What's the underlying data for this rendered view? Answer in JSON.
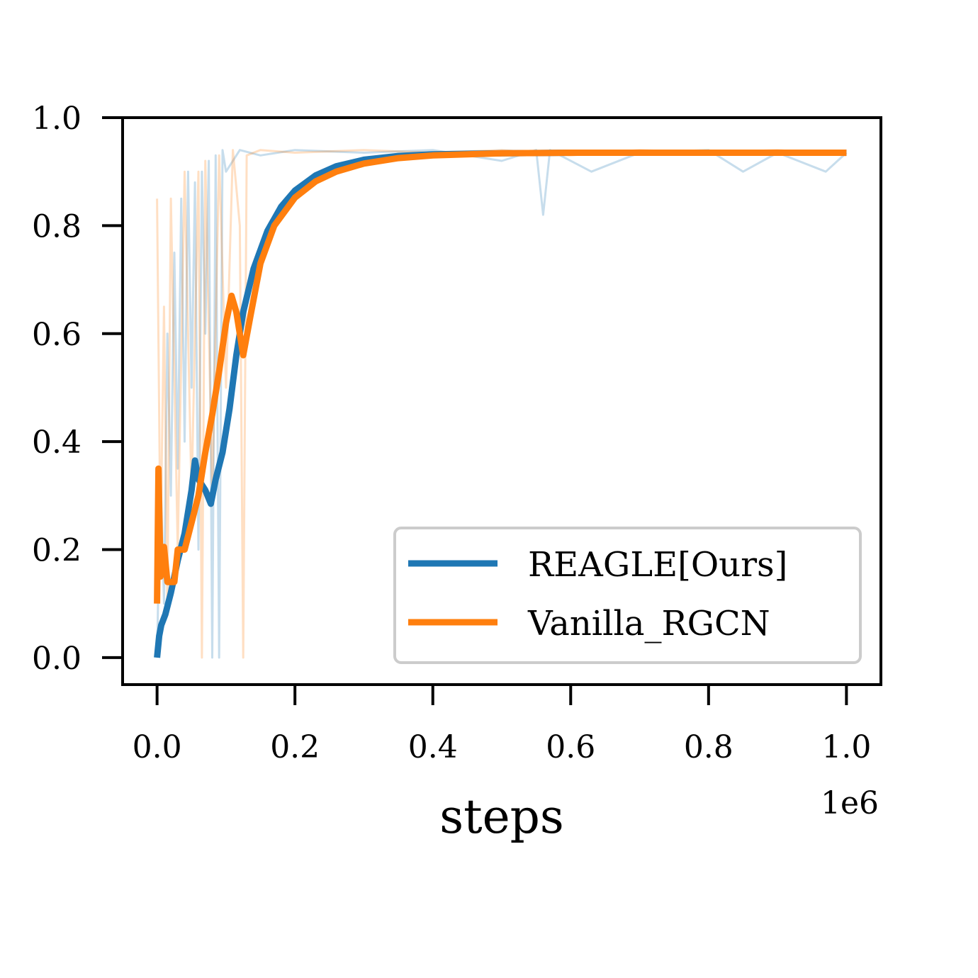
{
  "chart_data": {
    "type": "line",
    "title": "",
    "xlabel": "steps",
    "ylabel": "",
    "x_offset_label": "1e6",
    "xlim": [
      -0.05,
      1.05
    ],
    "ylim": [
      -0.05,
      1.0
    ],
    "xticks": [
      "0.0",
      "0.2",
      "0.4",
      "0.6",
      "0.8",
      "1.0"
    ],
    "yticks": [
      "0.0",
      "0.2",
      "0.4",
      "0.6",
      "0.8",
      "1.0"
    ],
    "grid": false,
    "legend_position": "lower-right",
    "series": [
      {
        "name": "REAGLE[Ours]",
        "color": "#1f77b4",
        "smoothed": [
          [
            0.0,
            0.0
          ],
          [
            0.003,
            0.04
          ],
          [
            0.006,
            0.06
          ],
          [
            0.012,
            0.08
          ],
          [
            0.02,
            0.12
          ],
          [
            0.03,
            0.18
          ],
          [
            0.04,
            0.23
          ],
          [
            0.05,
            0.31
          ],
          [
            0.055,
            0.365
          ],
          [
            0.06,
            0.33
          ],
          [
            0.07,
            0.31
          ],
          [
            0.078,
            0.285
          ],
          [
            0.085,
            0.33
          ],
          [
            0.095,
            0.38
          ],
          [
            0.105,
            0.46
          ],
          [
            0.115,
            0.56
          ],
          [
            0.125,
            0.64
          ],
          [
            0.14,
            0.72
          ],
          [
            0.16,
            0.79
          ],
          [
            0.18,
            0.835
          ],
          [
            0.2,
            0.865
          ],
          [
            0.23,
            0.893
          ],
          [
            0.26,
            0.91
          ],
          [
            0.3,
            0.922
          ],
          [
            0.35,
            0.929
          ],
          [
            0.4,
            0.932
          ],
          [
            0.5,
            0.934
          ],
          [
            0.6,
            0.935
          ],
          [
            0.7,
            0.935
          ],
          [
            0.8,
            0.935
          ],
          [
            0.9,
            0.935
          ],
          [
            1.0,
            0.935
          ]
        ],
        "raw": [
          [
            0.0,
            0.0
          ],
          [
            0.005,
            0.35
          ],
          [
            0.01,
            0.1
          ],
          [
            0.015,
            0.6
          ],
          [
            0.02,
            0.3
          ],
          [
            0.025,
            0.75
          ],
          [
            0.03,
            0.35
          ],
          [
            0.035,
            0.85
          ],
          [
            0.04,
            0.4
          ],
          [
            0.045,
            0.9
          ],
          [
            0.05,
            0.5
          ],
          [
            0.055,
            0.88
          ],
          [
            0.06,
            0.2
          ],
          [
            0.065,
            0.9
          ],
          [
            0.07,
            0.6
          ],
          [
            0.075,
            0.92
          ],
          [
            0.08,
            0.0
          ],
          [
            0.085,
            0.93
          ],
          [
            0.09,
            0.0
          ],
          [
            0.095,
            0.94
          ],
          [
            0.1,
            0.9
          ],
          [
            0.12,
            0.94
          ],
          [
            0.15,
            0.93
          ],
          [
            0.2,
            0.94
          ],
          [
            0.3,
            0.935
          ],
          [
            0.4,
            0.94
          ],
          [
            0.5,
            0.92
          ],
          [
            0.55,
            0.94
          ],
          [
            0.56,
            0.82
          ],
          [
            0.57,
            0.94
          ],
          [
            0.63,
            0.9
          ],
          [
            0.7,
            0.935
          ],
          [
            0.8,
            0.94
          ],
          [
            0.85,
            0.9
          ],
          [
            0.9,
            0.935
          ],
          [
            0.97,
            0.9
          ],
          [
            1.0,
            0.935
          ]
        ]
      },
      {
        "name": "Vanilla_RGCN",
        "color": "#ff7f0e",
        "smoothed": [
          [
            0.0,
            0.1
          ],
          [
            0.002,
            0.35
          ],
          [
            0.005,
            0.15
          ],
          [
            0.01,
            0.205
          ],
          [
            0.015,
            0.14
          ],
          [
            0.02,
            0.14
          ],
          [
            0.025,
            0.14
          ],
          [
            0.03,
            0.2
          ],
          [
            0.04,
            0.2
          ],
          [
            0.05,
            0.25
          ],
          [
            0.06,
            0.3
          ],
          [
            0.07,
            0.38
          ],
          [
            0.08,
            0.45
          ],
          [
            0.09,
            0.53
          ],
          [
            0.1,
            0.62
          ],
          [
            0.108,
            0.67
          ],
          [
            0.115,
            0.64
          ],
          [
            0.125,
            0.56
          ],
          [
            0.135,
            0.63
          ],
          [
            0.15,
            0.73
          ],
          [
            0.17,
            0.8
          ],
          [
            0.2,
            0.852
          ],
          [
            0.23,
            0.882
          ],
          [
            0.26,
            0.9
          ],
          [
            0.3,
            0.915
          ],
          [
            0.35,
            0.925
          ],
          [
            0.4,
            0.93
          ],
          [
            0.5,
            0.934
          ],
          [
            0.6,
            0.935
          ],
          [
            0.7,
            0.935
          ],
          [
            0.8,
            0.935
          ],
          [
            0.9,
            0.935
          ],
          [
            1.0,
            0.935
          ]
        ],
        "raw": [
          [
            0.0,
            0.85
          ],
          [
            0.005,
            0.2
          ],
          [
            0.01,
            0.65
          ],
          [
            0.015,
            0.1
          ],
          [
            0.02,
            0.85
          ],
          [
            0.03,
            0.2
          ],
          [
            0.04,
            0.9
          ],
          [
            0.05,
            0.3
          ],
          [
            0.06,
            0.9
          ],
          [
            0.065,
            0.0
          ],
          [
            0.07,
            0.92
          ],
          [
            0.08,
            0.3
          ],
          [
            0.09,
            0.93
          ],
          [
            0.1,
            0.5
          ],
          [
            0.11,
            0.94
          ],
          [
            0.12,
            0.8
          ],
          [
            0.125,
            0.0
          ],
          [
            0.13,
            0.93
          ],
          [
            0.15,
            0.94
          ],
          [
            0.2,
            0.935
          ],
          [
            0.3,
            0.94
          ],
          [
            0.4,
            0.935
          ],
          [
            0.5,
            0.94
          ],
          [
            0.6,
            0.93
          ],
          [
            0.7,
            0.94
          ],
          [
            0.8,
            0.935
          ],
          [
            0.9,
            0.94
          ],
          [
            1.0,
            0.93
          ]
        ]
      }
    ]
  }
}
